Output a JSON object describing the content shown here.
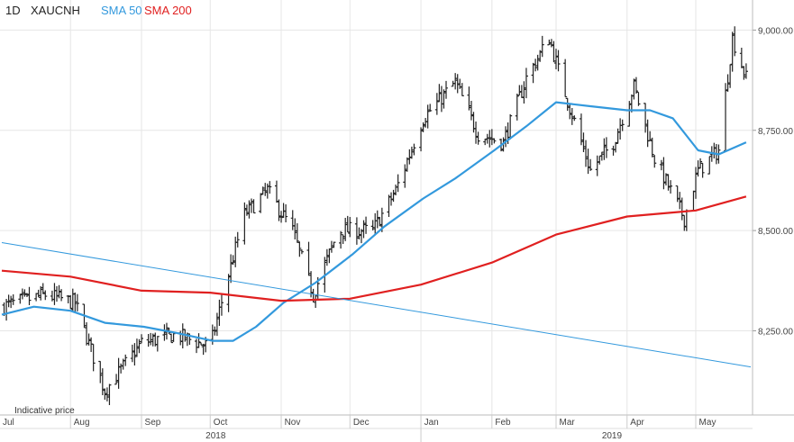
{
  "header": {
    "interval": "1D",
    "symbol": "XAUCNH",
    "indicators": [
      {
        "label": "SMA 50",
        "color": "#3399dd"
      },
      {
        "label": "SMA 200",
        "color": "#e02020"
      }
    ]
  },
  "footer_note": "Indicative price",
  "chart_data": {
    "type": "ohlc",
    "title": "XAUCNH",
    "interval": "1D",
    "yaxis": {
      "position": "right",
      "ticks": [
        8250,
        8500,
        8750,
        9000
      ],
      "tick_labels": [
        "8,250.00",
        "8,500.00",
        "8,750.00",
        "9,000.00"
      ],
      "range": [
        8040,
        9075
      ]
    },
    "xaxis": {
      "months": [
        "Jul",
        "Aug",
        "Sep",
        "Oct",
        "Nov",
        "Dec",
        "Jan",
        "Feb",
        "Mar",
        "Apr",
        "May"
      ],
      "years": [
        "2018",
        "2019"
      ],
      "range": [
        "2018-07-01",
        "2019-05-24"
      ]
    },
    "grid": true,
    "series": [
      {
        "name": "SMA 50",
        "type": "line",
        "color": "#3399dd",
        "points": [
          [
            "2018-07-01",
            8290
          ],
          [
            "2018-07-15",
            8310
          ],
          [
            "2018-07-31",
            8300
          ],
          [
            "2018-08-15",
            8270
          ],
          [
            "2018-09-01",
            8260
          ],
          [
            "2018-09-15",
            8245
          ],
          [
            "2018-10-01",
            8225
          ],
          [
            "2018-10-10",
            8225
          ],
          [
            "2018-10-20",
            8260
          ],
          [
            "2018-11-01",
            8320
          ],
          [
            "2018-11-15",
            8370
          ],
          [
            "2018-12-01",
            8440
          ],
          [
            "2018-12-15",
            8510
          ],
          [
            "2019-01-01",
            8580
          ],
          [
            "2019-01-15",
            8630
          ],
          [
            "2019-02-01",
            8700
          ],
          [
            "2019-02-15",
            8760
          ],
          [
            "2019-02-28",
            8820
          ],
          [
            "2019-03-15",
            8810
          ],
          [
            "2019-03-31",
            8800
          ],
          [
            "2019-04-10",
            8800
          ],
          [
            "2019-04-20",
            8780
          ],
          [
            "2019-05-01",
            8700
          ],
          [
            "2019-05-10",
            8690
          ],
          [
            "2019-05-22",
            8720
          ]
        ]
      },
      {
        "name": "SMA 200",
        "type": "line",
        "color": "#e02020",
        "points": [
          [
            "2018-07-01",
            8400
          ],
          [
            "2018-07-31",
            8385
          ],
          [
            "2018-08-31",
            8350
          ],
          [
            "2018-09-30",
            8345
          ],
          [
            "2018-10-31",
            8325
          ],
          [
            "2018-11-30",
            8330
          ],
          [
            "2018-12-31",
            8365
          ],
          [
            "2019-01-31",
            8420
          ],
          [
            "2019-02-28",
            8490
          ],
          [
            "2019-03-31",
            8535
          ],
          [
            "2019-04-30",
            8550
          ],
          [
            "2019-05-22",
            8585
          ]
        ]
      },
      {
        "name": "trendline",
        "type": "line",
        "color": "#3399dd",
        "points": [
          [
            "2018-07-01",
            8470
          ],
          [
            "2019-05-24",
            8160
          ]
        ]
      }
    ],
    "price_anchors": [
      [
        "2018-07-01",
        8310
      ],
      [
        "2018-07-20",
        8340
      ],
      [
        "2018-08-02",
        8320
      ],
      [
        "2018-08-15",
        8100
      ],
      [
        "2018-08-31",
        8220
      ],
      [
        "2018-09-15",
        8240
      ],
      [
        "2018-09-30",
        8210
      ],
      [
        "2018-10-08",
        8390
      ],
      [
        "2018-10-15",
        8540
      ],
      [
        "2018-10-25",
        8600
      ],
      [
        "2018-11-05",
        8500
      ],
      [
        "2018-11-14",
        8340
      ],
      [
        "2018-11-25",
        8500
      ],
      [
        "2018-12-10",
        8500
      ],
      [
        "2018-12-20",
        8600
      ],
      [
        "2019-01-01",
        8780
      ],
      [
        "2019-01-15",
        8870
      ],
      [
        "2019-01-25",
        8740
      ],
      [
        "2019-02-05",
        8720
      ],
      [
        "2019-02-15",
        8880
      ],
      [
        "2019-02-25",
        8980
      ],
      [
        "2019-03-03",
        8860
      ],
      [
        "2019-03-15",
        8650
      ],
      [
        "2019-03-25",
        8720
      ],
      [
        "2019-04-03",
        8860
      ],
      [
        "2019-04-12",
        8680
      ],
      [
        "2019-04-25",
        8530
      ],
      [
        "2019-05-01",
        8650
      ],
      [
        "2019-05-10",
        8700
      ],
      [
        "2019-05-16",
        8980
      ],
      [
        "2019-05-22",
        8880
      ]
    ]
  }
}
